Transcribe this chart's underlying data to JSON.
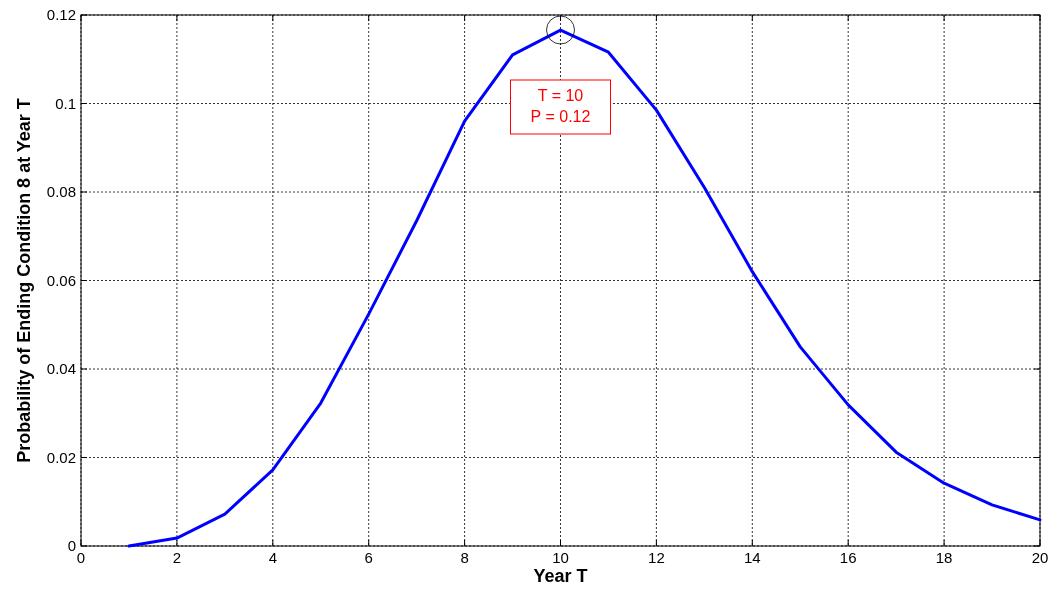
{
  "chart_data": {
    "type": "line",
    "xlabel": "Year T",
    "ylabel": "Probability of Ending Condition 8 at Year T",
    "x": [
      1,
      2,
      3,
      4,
      5,
      6,
      7,
      8,
      9,
      10,
      11,
      12,
      13,
      14,
      15,
      16,
      17,
      18,
      19,
      20
    ],
    "series": [
      {
        "color": "#0000ff",
        "values": [
          0,
          0.0018,
          0.0072,
          0.0172,
          0.0323,
          0.0524,
          0.0735,
          0.096,
          0.111,
          0.1166,
          0.1116,
          0.0985,
          0.081,
          0.062,
          0.045,
          0.0319,
          0.0212,
          0.0142,
          0.0093,
          0.0059
        ]
      }
    ],
    "xlim": [
      0,
      20
    ],
    "xticks": [
      0,
      2,
      4,
      6,
      8,
      10,
      12,
      14,
      16,
      18,
      20
    ],
    "ylim": [
      0,
      0.12
    ],
    "yticks": [
      0,
      0.02,
      0.04,
      0.06,
      0.08,
      0.1,
      0.12
    ],
    "grid": true,
    "line_style": "solid",
    "marker": "none",
    "annotations": [
      "T = 10\nP = 0.12"
    ]
  }
}
